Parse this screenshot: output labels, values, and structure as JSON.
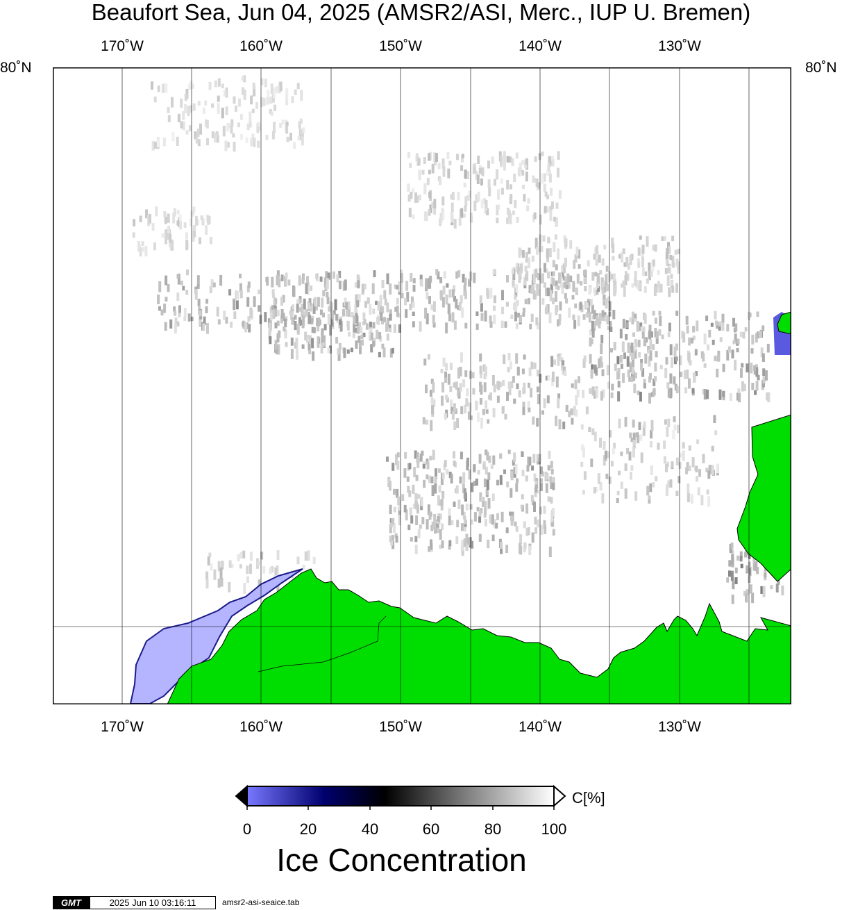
{
  "title": "Beaufort Sea, Jun 04, 2025 (AMSR2/ASI, Merc., IUP U. Bremen)",
  "lon_labels": [
    "170˚W",
    "160˚W",
    "150˚W",
    "140˚W",
    "130˚W"
  ],
  "lat_labels": {
    "left": "80˚N",
    "right": "80˚N"
  },
  "colorbar": {
    "ticks": [
      "0",
      "20",
      "40",
      "60",
      "80",
      "100"
    ],
    "unit": "C[%]",
    "title": "Ice Concentration"
  },
  "colors": {
    "land": "#00dd00",
    "open_water": "#ffffff",
    "low_concentration_fill": "#b4b4ff",
    "colorbar_stops": [
      "#7878ff",
      "#00006e",
      "#000000",
      "#787878",
      "#ffffff"
    ]
  },
  "footer": {
    "logo": "GMT",
    "timestamp": "2025 Jun 10 03:16:11",
    "filename": "amsr2-asi-seaice.tab"
  }
}
